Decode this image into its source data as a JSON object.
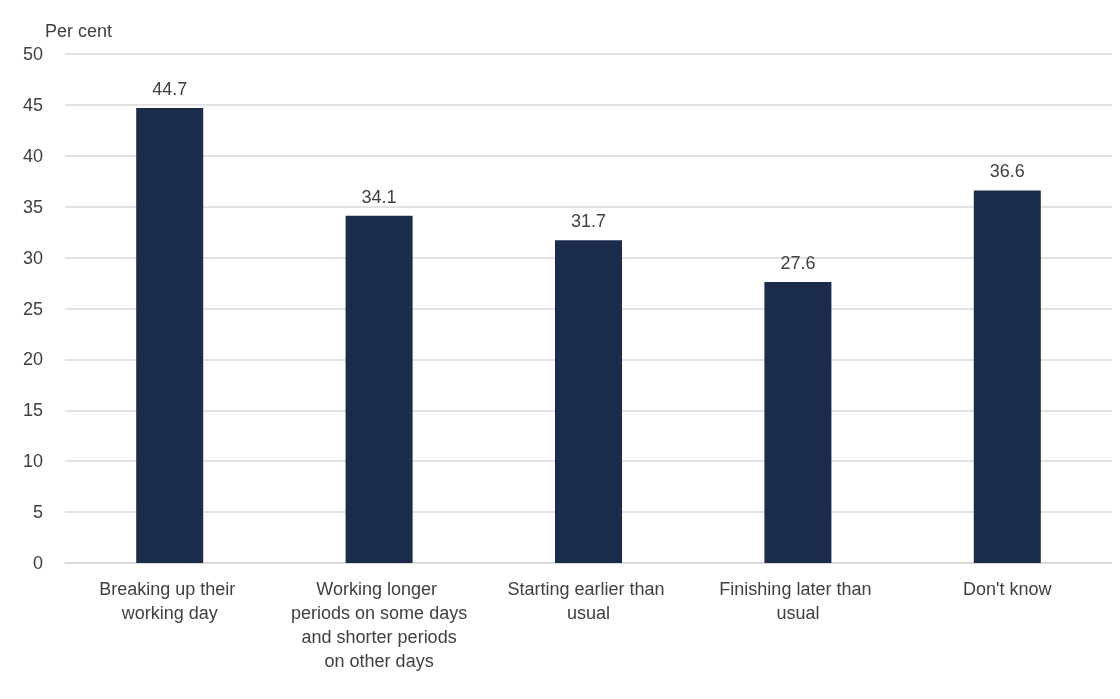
{
  "chart_data": {
    "type": "bar",
    "ylabel": "Per cent",
    "categories": [
      "Breaking up their working day",
      "Working longer periods on some days and shorter periods on other days",
      "Starting earlier than usual",
      "Finishing later than usual",
      "Don't know"
    ],
    "values": [
      44.7,
      34.1,
      31.7,
      27.6,
      36.6
    ],
    "color": "#1a2b4b",
    "data_labels": true,
    "ylim": [
      0,
      50
    ],
    "yticks": [
      0,
      5,
      10,
      15,
      20,
      25,
      30,
      35,
      40,
      45,
      50
    ],
    "grid": "y"
  }
}
